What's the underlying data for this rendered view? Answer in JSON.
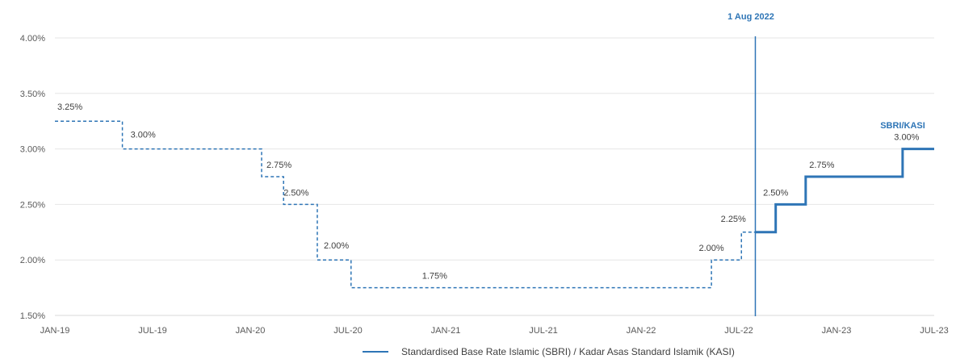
{
  "chart_data": {
    "type": "line",
    "colors": {
      "line": "#2E75B6",
      "grid": "#E6E6E6",
      "axis": "#D9D9D9",
      "text": "#595959"
    },
    "x_ticks": [
      "JAN-19",
      "JUL-19",
      "JAN-20",
      "JUL-20",
      "JAN-21",
      "JUL-21",
      "JAN-22",
      "JUL-22",
      "JAN-23",
      "JUL-23"
    ],
    "y_ticks": [
      "1.50%",
      "2.00%",
      "2.50%",
      "3.00%",
      "3.50%",
      "4.00%"
    ],
    "ylim": [
      1.5,
      4.0
    ],
    "xlim": [
      "2019-01-01",
      "2023-07-01"
    ],
    "grid": true,
    "legend_position": "bottom",
    "series": [
      {
        "name": "Standardised Base Rate Islamic (SBRI) / Kadar Asas Standard Islamik (KASI)",
        "style": "step",
        "historical_points": [
          {
            "date": "2019-01-01",
            "value": 3.25,
            "label": "3.25%"
          },
          {
            "date": "2019-05-07",
            "value": 3.0,
            "label": "3.00%"
          },
          {
            "date": "2020-01-22",
            "value": 2.75,
            "label": "2.75%"
          },
          {
            "date": "2020-03-03",
            "value": 2.5,
            "label": "2.50%"
          },
          {
            "date": "2020-05-05",
            "value": 2.0,
            "label": "2.00%"
          },
          {
            "date": "2020-07-07",
            "value": 1.75,
            "label": "1.75%"
          },
          {
            "date": "2022-05-11",
            "value": 2.0,
            "label": "2.00%"
          },
          {
            "date": "2022-07-06",
            "value": 2.25,
            "label": "2.25%"
          }
        ],
        "current_points": [
          {
            "date": "2022-08-01",
            "value": 2.25,
            "label": ""
          },
          {
            "date": "2022-09-08",
            "value": 2.5,
            "label": "2.50%"
          },
          {
            "date": "2022-11-03",
            "value": 2.75,
            "label": "2.75%"
          },
          {
            "date": "2023-05-03",
            "value": 3.0,
            "label": "3.00%"
          }
        ],
        "end_date": "2023-07-01"
      }
    ],
    "annotations": {
      "vline_date": "2022-08-01",
      "vline_label": "1 Aug 2022",
      "series_tag": "SBRI/KASI"
    },
    "legend_label": "Standardised Base Rate Islamic (SBRI) / Kadar Asas Standard Islamik (KASI)"
  }
}
